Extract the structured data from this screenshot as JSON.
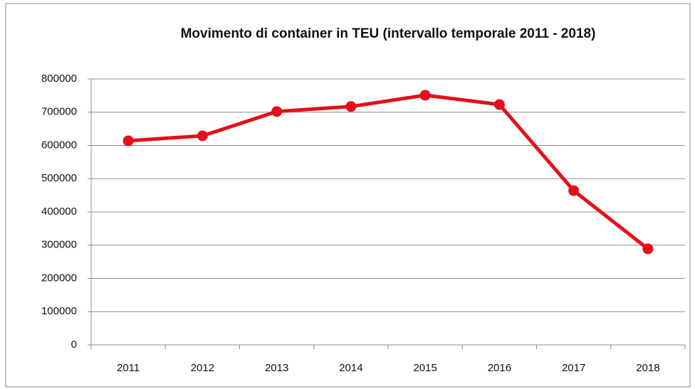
{
  "chart_data": {
    "type": "line",
    "title": "Movimento di container in TEU (intervallo temporale 2011 - 2018)",
    "categories": [
      "2011",
      "2012",
      "2013",
      "2014",
      "2015",
      "2016",
      "2017",
      "2018"
    ],
    "series": [
      {
        "name": "TEU",
        "color": "#e3101a",
        "values": [
          614000,
          629000,
          702000,
          717000,
          751000,
          723000,
          464000,
          289000
        ]
      }
    ],
    "ylim": [
      0,
      800000
    ],
    "yticks": [
      0,
      100000,
      200000,
      300000,
      400000,
      500000,
      600000,
      700000,
      800000
    ],
    "grid": true
  }
}
